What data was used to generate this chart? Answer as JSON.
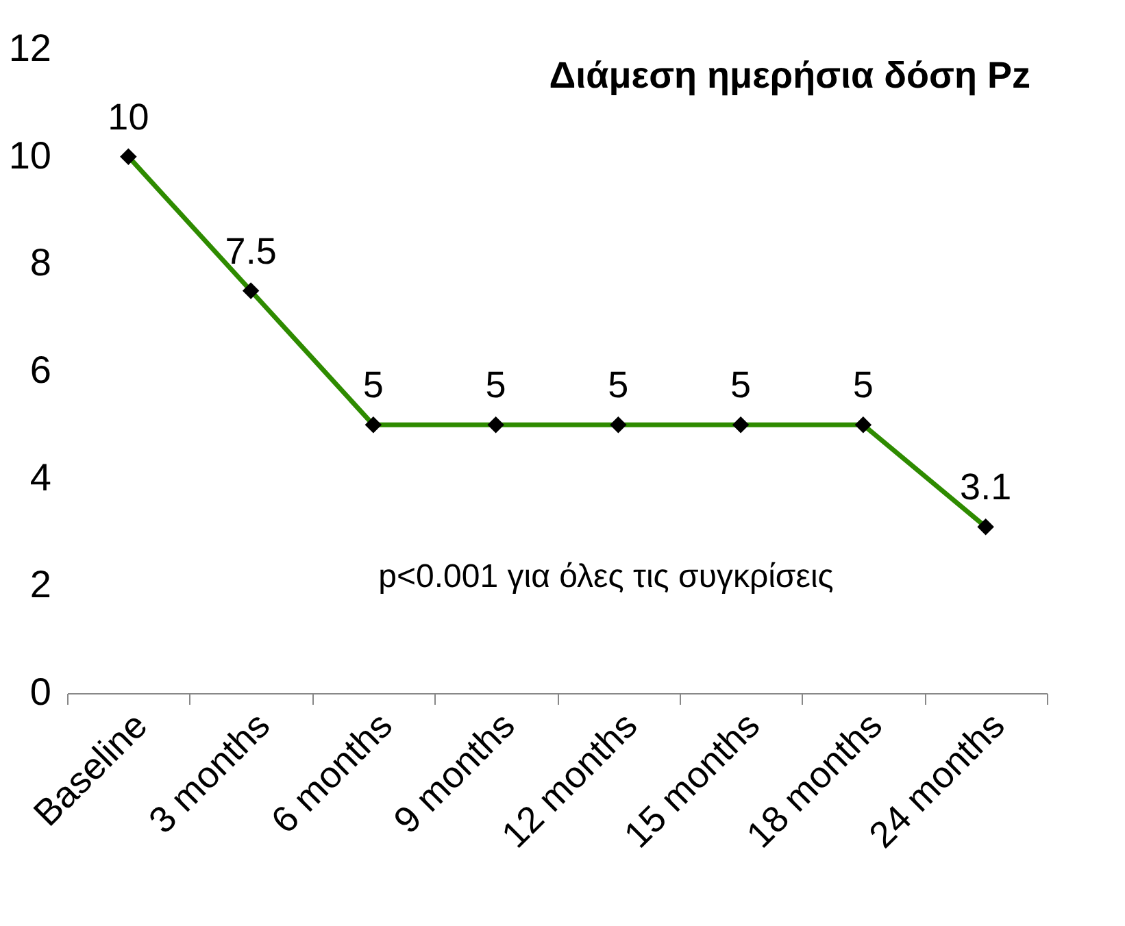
{
  "chart_data": {
    "type": "line",
    "title": "Διάμεση ημερήσια δόση Pz",
    "categories": [
      "Baseline",
      "3 months",
      "6 months",
      "9 months",
      "12 months",
      "15 months",
      "18 months",
      "24 months"
    ],
    "series": [
      {
        "color": "#2e8b00",
        "values": [
          10,
          7.5,
          5,
          5,
          5,
          5,
          5,
          3.1
        ]
      }
    ],
    "ylim": [
      0,
      12
    ],
    "yticks": [
      0,
      2,
      4,
      6,
      8,
      10,
      12
    ],
    "grid": false,
    "marker": "diamond",
    "line_style": "solid",
    "data_labels": true,
    "annotations": [
      "p<0.001 για όλες τις συγκρίσεις"
    ]
  }
}
